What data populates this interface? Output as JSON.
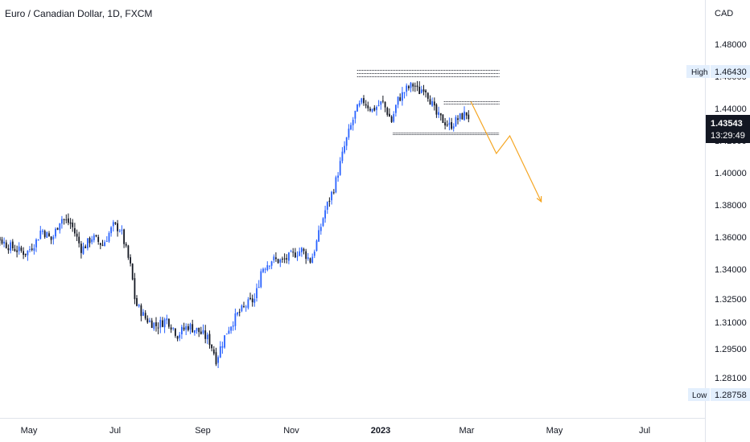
{
  "title": "Euro / Canadian Dollar, 1D, FXCM",
  "currency": "CAD",
  "colors": {
    "up": "#2962ff",
    "down": "#131722",
    "projection": "#f5a623",
    "level": "#131722",
    "label_bg": "#e3effd",
    "price_bg": "#131722"
  },
  "chart_data": {
    "type": "candlestick",
    "title": "Euro / Canadian Dollar, 1D, FXCM",
    "y_unit": "CAD",
    "x_tick_labels": [
      "May",
      "Jul",
      "Sep",
      "Nov",
      "2023",
      "Mar",
      "May",
      "Jul"
    ],
    "y_tick_labels": [
      "1.48000",
      "1.46000",
      "1.44000",
      "1.42000",
      "1.40000",
      "1.38000",
      "1.36000",
      "1.34000",
      "1.32500",
      "1.31000",
      "1.29500",
      "1.28100"
    ],
    "y_tick_values": [
      1.48,
      1.46,
      1.44,
      1.42,
      1.4,
      1.38,
      1.36,
      1.34,
      1.325,
      1.31,
      1.295,
      1.281
    ],
    "high": {
      "label": "High",
      "value": "1.46430"
    },
    "low": {
      "label": "Low",
      "value": "1.28758"
    },
    "last_price": {
      "value": "1.43543",
      "countdown": "13:29:49"
    },
    "price_path": [
      [
        "2022-04-01",
        1.367
      ],
      [
        "2022-04-10",
        1.363
      ],
      [
        "2022-04-20",
        1.355
      ],
      [
        "2022-04-27",
        1.352
      ],
      [
        "2022-05-03",
        1.35
      ],
      [
        "2022-05-10",
        1.358
      ],
      [
        "2022-05-13",
        1.365
      ],
      [
        "2022-05-20",
        1.358
      ],
      [
        "2022-05-26",
        1.372
      ],
      [
        "2022-06-02",
        1.368
      ],
      [
        "2022-06-09",
        1.352
      ],
      [
        "2022-06-16",
        1.36
      ],
      [
        "2022-06-23",
        1.355
      ],
      [
        "2022-06-30",
        1.367
      ],
      [
        "2022-07-05",
        1.365
      ],
      [
        "2022-07-12",
        1.34
      ],
      [
        "2022-07-15",
        1.322
      ],
      [
        "2022-07-22",
        1.312
      ],
      [
        "2022-07-29",
        1.308
      ],
      [
        "2022-08-05",
        1.312
      ],
      [
        "2022-08-12",
        1.303
      ],
      [
        "2022-08-19",
        1.308
      ],
      [
        "2022-08-26",
        1.305
      ],
      [
        "2022-09-02",
        1.3
      ],
      [
        "2022-09-07",
        1.29
      ],
      [
        "2022-09-14",
        1.305
      ],
      [
        "2022-09-21",
        1.315
      ],
      [
        "2022-09-28",
        1.322
      ],
      [
        "2022-10-03",
        1.325
      ],
      [
        "2022-10-07",
        1.34
      ],
      [
        "2022-10-14",
        1.346
      ],
      [
        "2022-10-21",
        1.345
      ],
      [
        "2022-10-28",
        1.349
      ],
      [
        "2022-11-03",
        1.352
      ],
      [
        "2022-11-09",
        1.345
      ],
      [
        "2022-11-14",
        1.36
      ],
      [
        "2022-11-18",
        1.375
      ],
      [
        "2022-11-25",
        1.392
      ],
      [
        "2022-12-02",
        1.418
      ],
      [
        "2022-12-09",
        1.438
      ],
      [
        "2022-12-14",
        1.445
      ],
      [
        "2022-12-20",
        1.439
      ],
      [
        "2022-12-27",
        1.444
      ],
      [
        "2023-01-02",
        1.432
      ],
      [
        "2023-01-06",
        1.445
      ],
      [
        "2023-01-12",
        1.452
      ],
      [
        "2023-01-17",
        1.455
      ],
      [
        "2023-01-20",
        1.45
      ],
      [
        "2023-01-24",
        1.454
      ],
      [
        "2023-01-27",
        1.447
      ],
      [
        "2023-02-01",
        1.436
      ],
      [
        "2023-02-06",
        1.432
      ],
      [
        "2023-02-10",
        1.429
      ],
      [
        "2023-02-16",
        1.434
      ],
      [
        "2023-02-21",
        1.437
      ],
      [
        "2023-02-23",
        1.434
      ]
    ],
    "levels": [
      {
        "from": "2022-12-10",
        "to": "2023-03-15",
        "value": 1.4638
      },
      {
        "from": "2022-12-10",
        "to": "2023-03-15",
        "value": 1.4622
      },
      {
        "from": "2022-12-10",
        "to": "2023-03-15",
        "value": 1.46
      },
      {
        "from": "2023-02-06",
        "to": "2023-03-15",
        "value": 1.4447
      },
      {
        "from": "2023-02-06",
        "to": "2023-03-15",
        "value": 1.443
      },
      {
        "from": "2023-01-03",
        "to": "2023-03-15",
        "value": 1.425
      },
      {
        "from": "2023-01-03",
        "to": "2023-03-15",
        "value": 1.4238
      }
    ],
    "projection": [
      [
        "2023-02-24",
        1.4443
      ],
      [
        "2023-03-13",
        1.412
      ],
      [
        "2023-03-22",
        1.423
      ],
      [
        "2023-04-12",
        1.382
      ]
    ]
  }
}
